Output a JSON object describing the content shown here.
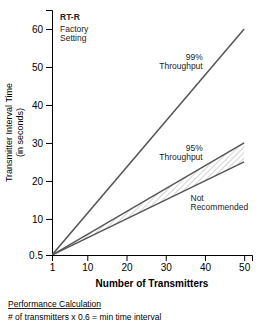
{
  "chart_data": {
    "type": "line",
    "xlabel": "Number of Transmitters",
    "ylabel": "Transmitter Interval Time\n(in seconds)",
    "x": [
      1,
      50
    ],
    "series": [
      {
        "name": "99%\nThroughput",
        "color": "#555555",
        "values": [
          0.5,
          60
        ]
      },
      {
        "name": "95%\nThroughput",
        "color": "#555555",
        "values": [
          0.5,
          30
        ]
      },
      {
        "name": "Not\nRecommended",
        "color": "#555555",
        "values": [
          0.5,
          25
        ]
      }
    ],
    "xlim": [
      1,
      52
    ],
    "ylim": [
      0.5,
      65
    ],
    "xticks": [
      1,
      10,
      20,
      30,
      40,
      50
    ],
    "yticks": [
      0.5,
      10,
      20,
      30,
      40,
      50,
      60
    ],
    "annotations": [
      "RT-R",
      "Factory\nSetting"
    ],
    "footnote": [
      "Performance Calculation",
      "# of transmitters x 0.6 = min time interval"
    ]
  }
}
